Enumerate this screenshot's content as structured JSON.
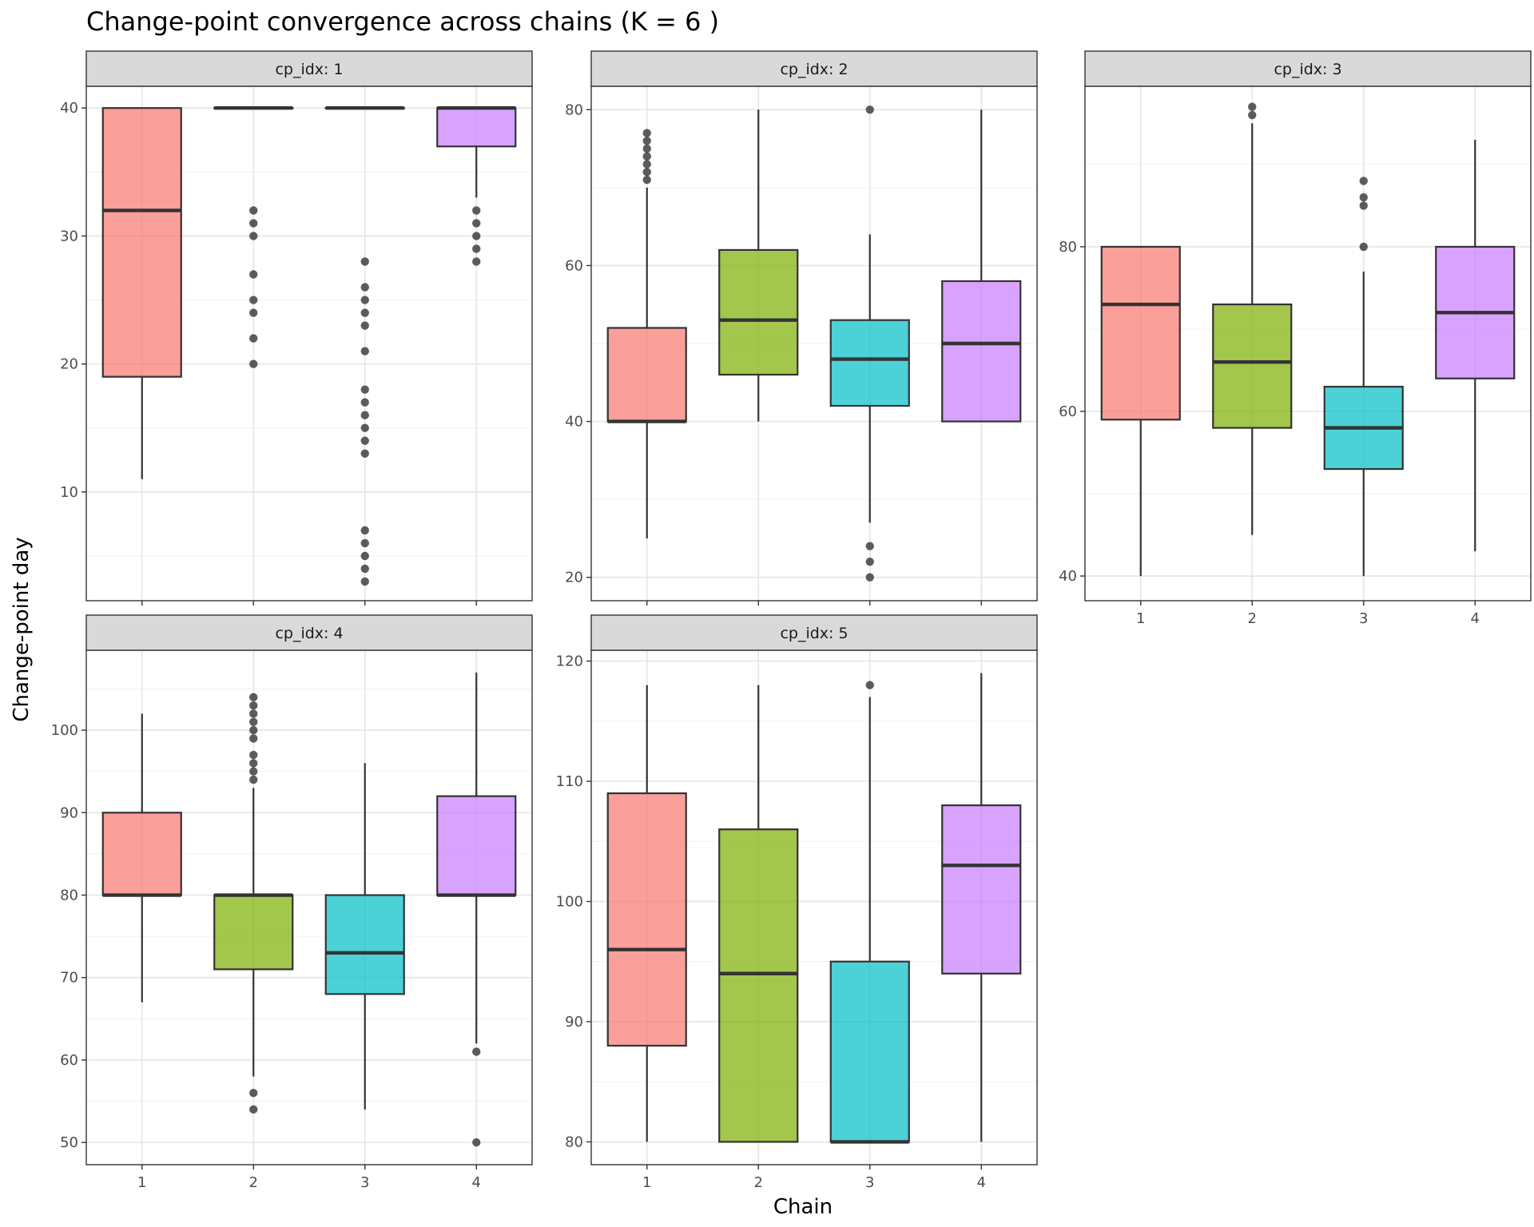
{
  "title": "Change-point convergence across chains (K = 6 )",
  "xlabel": "Chain",
  "ylabel": "Change-point day",
  "chart_data": {
    "type": "boxplot",
    "facet_variable": "cp_idx",
    "categories": [
      "1",
      "2",
      "3",
      "4"
    ],
    "series_colors": {
      "1": "#F8766D",
      "2": "#7CAE00",
      "3": "#00BFC4",
      "4": "#C77CFF"
    },
    "grid": true,
    "legend": "none",
    "panels": [
      {
        "strip": "cp_idx: 1",
        "ylim": [
          1.5,
          41.7
        ],
        "y_ticks": [
          10,
          20,
          30,
          40
        ],
        "x_ticks_shown": false,
        "boxes": [
          {
            "chain": "1",
            "q1": 19,
            "median": 32,
            "q3": 40,
            "whisker_low": 11,
            "whisker_high": 40,
            "outliers": []
          },
          {
            "chain": "2",
            "q1": 40,
            "median": 40,
            "q3": 40,
            "whisker_low": 40,
            "whisker_high": 40,
            "outliers": [
              32,
              31,
              30,
              27,
              25,
              24,
              22,
              20
            ]
          },
          {
            "chain": "3",
            "q1": 40,
            "median": 40,
            "q3": 40,
            "whisker_low": 40,
            "whisker_high": 40,
            "outliers": [
              28,
              26,
              25,
              24,
              23,
              21,
              18,
              17,
              16,
              15,
              14,
              13,
              7,
              6,
              5,
              4,
              3
            ]
          },
          {
            "chain": "4",
            "q1": 37,
            "median": 40,
            "q3": 40,
            "whisker_low": 33,
            "whisker_high": 40,
            "outliers": [
              32,
              31,
              30,
              29,
              28
            ]
          }
        ]
      },
      {
        "strip": "cp_idx: 2",
        "ylim": [
          17,
          83
        ],
        "y_ticks": [
          20,
          40,
          60,
          80
        ],
        "x_ticks_shown": false,
        "boxes": [
          {
            "chain": "1",
            "q1": 40,
            "median": 40,
            "q3": 52,
            "whisker_low": 25,
            "whisker_high": 70,
            "outliers": [
              77,
              76,
              75,
              74,
              73,
              72,
              71
            ]
          },
          {
            "chain": "2",
            "q1": 46,
            "median": 53,
            "q3": 62,
            "whisker_low": 40,
            "whisker_high": 80,
            "outliers": []
          },
          {
            "chain": "3",
            "q1": 42,
            "median": 48,
            "q3": 53,
            "whisker_low": 27,
            "whisker_high": 64,
            "outliers": [
              80,
              24,
              22,
              20
            ]
          },
          {
            "chain": "4",
            "q1": 40,
            "median": 50,
            "q3": 58,
            "whisker_low": 40,
            "whisker_high": 80,
            "outliers": []
          }
        ]
      },
      {
        "strip": "cp_idx: 3",
        "ylim": [
          37,
          99.5
        ],
        "y_ticks": [
          40,
          60,
          80
        ],
        "x_ticks_shown": true,
        "boxes": [
          {
            "chain": "1",
            "q1": 59,
            "median": 73,
            "q3": 80,
            "whisker_low": 40,
            "whisker_high": 80,
            "outliers": []
          },
          {
            "chain": "2",
            "q1": 58,
            "median": 66,
            "q3": 73,
            "whisker_low": 45,
            "whisker_high": 95,
            "outliers": [
              97,
              96
            ]
          },
          {
            "chain": "3",
            "q1": 53,
            "median": 58,
            "q3": 63,
            "whisker_low": 40,
            "whisker_high": 77,
            "outliers": [
              88,
              86,
              85,
              80
            ]
          },
          {
            "chain": "4",
            "q1": 64,
            "median": 72,
            "q3": 80,
            "whisker_low": 43,
            "whisker_high": 93,
            "outliers": []
          }
        ]
      },
      {
        "strip": "cp_idx: 4",
        "ylim": [
          47.3,
          109.7
        ],
        "y_ticks": [
          50,
          60,
          70,
          80,
          90,
          100
        ],
        "x_ticks_shown": true,
        "boxes": [
          {
            "chain": "1",
            "q1": 80,
            "median": 80,
            "q3": 90,
            "whisker_low": 67,
            "whisker_high": 102,
            "outliers": []
          },
          {
            "chain": "2",
            "q1": 71,
            "median": 80,
            "q3": 80,
            "whisker_low": 58,
            "whisker_high": 93,
            "outliers": [
              104,
              103,
              102,
              101,
              100,
              99,
              97,
              96,
              95,
              94,
              56,
              54
            ]
          },
          {
            "chain": "3",
            "q1": 68,
            "median": 73,
            "q3": 80,
            "whisker_low": 54,
            "whisker_high": 96,
            "outliers": []
          },
          {
            "chain": "4",
            "q1": 80,
            "median": 80,
            "q3": 92,
            "whisker_low": 62,
            "whisker_high": 107,
            "outliers": [
              61,
              50
            ]
          }
        ]
      },
      {
        "strip": "cp_idx: 5",
        "ylim": [
          78.1,
          120.9
        ],
        "y_ticks": [
          80,
          90,
          100,
          110,
          120
        ],
        "y_tick_labels": [
          "80",
          "90",
          "100",
          "110",
          "120"
        ],
        "x_ticks_shown": true,
        "boxes": [
          {
            "chain": "1",
            "q1": 88,
            "median": 96,
            "q3": 109,
            "whisker_low": 80,
            "whisker_high": 118,
            "outliers": []
          },
          {
            "chain": "2",
            "q1": 80,
            "median": 94,
            "q3": 106,
            "whisker_low": 80,
            "whisker_high": 118,
            "outliers": []
          },
          {
            "chain": "3",
            "q1": 80,
            "median": 80,
            "q3": 95,
            "whisker_low": 80,
            "whisker_high": 117,
            "outliers": [
              118
            ]
          },
          {
            "chain": "4",
            "q1": 94,
            "median": 103,
            "q3": 108,
            "whisker_low": 80,
            "whisker_high": 119,
            "outliers": []
          }
        ]
      }
    ]
  }
}
